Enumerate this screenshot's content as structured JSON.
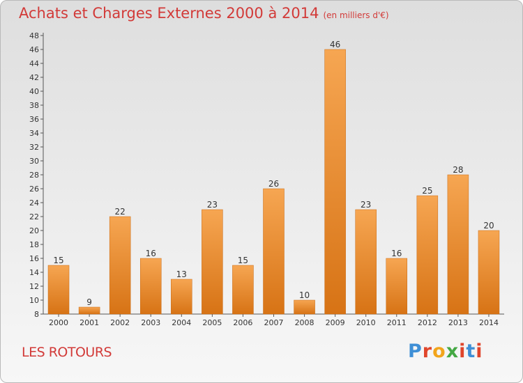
{
  "header": {
    "title": "Achats et Charges Externes 2000 à 2014",
    "unit": "(en milliers d'€)"
  },
  "footer": {
    "place": "LES ROTOURS",
    "logo": "Proxiti",
    "logo_colors": [
      "#3f8fd6",
      "#e0452b",
      "#f2a51b",
      "#44a844",
      "#e0452b",
      "#3f8fd6",
      "#e0452b"
    ]
  },
  "colors": {
    "bar_top": "#f6a652",
    "bar_bottom": "#d77315",
    "title": "#d23a38"
  },
  "chart_data": {
    "type": "bar",
    "categories": [
      "2000",
      "2001",
      "2002",
      "2003",
      "2004",
      "2005",
      "2006",
      "2007",
      "2008",
      "2009",
      "2010",
      "2011",
      "2012",
      "2013",
      "2014"
    ],
    "values": [
      15,
      9,
      22,
      16,
      13,
      23,
      15,
      26,
      10,
      46,
      23,
      16,
      25,
      28,
      20
    ],
    "title": "Achats et Charges Externes 2000 à 2014",
    "ylim": [
      8,
      48
    ],
    "yticks": [
      8,
      10,
      12,
      14,
      16,
      18,
      20,
      22,
      24,
      26,
      28,
      30,
      32,
      34,
      36,
      38,
      40,
      42,
      44,
      46,
      48
    ],
    "grid": false,
    "data_labels": true
  }
}
